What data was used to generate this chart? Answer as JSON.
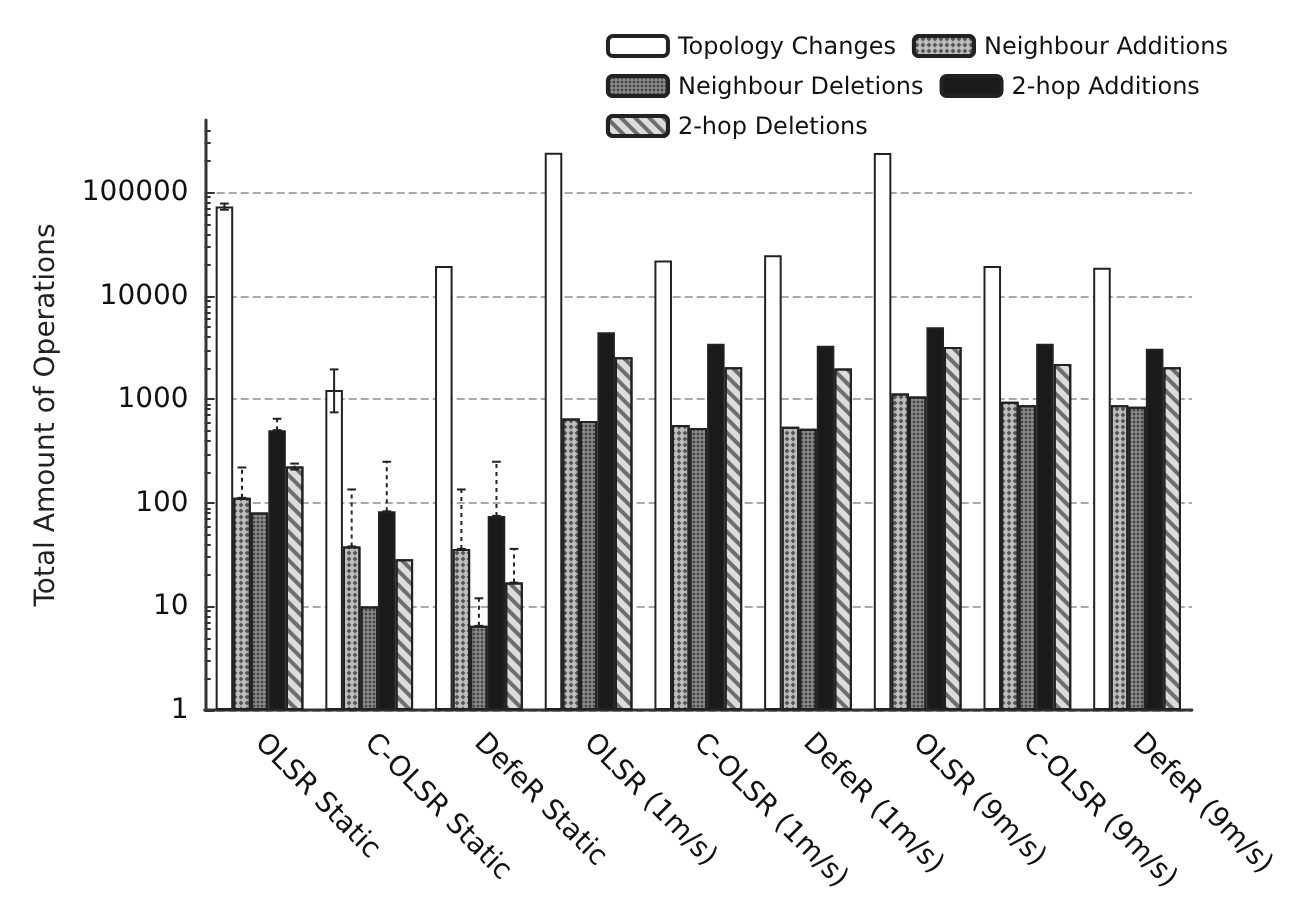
{
  "chart_data": {
    "type": "bar",
    "ylabel": "Total Amount of Operations",
    "log": true,
    "ylim": [
      1,
      500000
    ],
    "yticks": [
      1,
      10,
      100,
      1000,
      10000,
      100000
    ],
    "grid": "y",
    "legend": "top right",
    "categories": [
      "OLSR Static",
      "C-OLSR Static",
      "DefeR Static",
      "OLSR (1m/s)",
      "C-OLSR (1m/s)",
      "DefeR (1m/s)",
      "OLSR (9m/s)",
      "C-OLSR (9m/s)",
      "DefeR (9m/s)"
    ],
    "series": [
      {
        "name": "Topology Changes",
        "color": "#ffffff",
        "values": [
          73000,
          1230,
          19400,
          241000,
          22000,
          24700,
          240000,
          19400,
          18700
        ],
        "errors": [
          [
            68000,
            78000
          ],
          [
            750,
            1950
          ],
          null,
          null,
          null,
          null,
          null,
          null,
          null
        ]
      },
      {
        "name": "Neighbour Additions",
        "color": "#bdbdbd",
        "values": [
          112,
          38,
          36,
          655,
          565,
          545,
          1140,
          950,
          880
        ],
        "errors": [
          [
            112,
            220
          ],
          [
            38,
            135
          ],
          [
            36,
            135
          ],
          null,
          null,
          null,
          null,
          null,
          null
        ]
      },
      {
        "name": "Neighbour Deletions",
        "color": "#8c8c8c",
        "values": [
          81,
          10,
          6.5,
          620,
          530,
          520,
          1070,
          880,
          850
        ],
        "errors": [
          null,
          null,
          [
            6.5,
            12
          ],
          null,
          null,
          null,
          null,
          null,
          null
        ]
      },
      {
        "name": "2-hop Additions",
        "color": "#1a1a1a",
        "values": [
          505,
          83,
          75,
          4450,
          3450,
          3300,
          4970,
          3450,
          3080
        ],
        "errors": [
          [
            505,
            650
          ],
          [
            83,
            250
          ],
          [
            75,
            250
          ],
          null,
          null,
          null,
          null,
          null,
          null
        ]
      },
      {
        "name": "2-hop Deletions",
        "color": "#dcdcdc",
        "values": [
          225,
          28.6,
          17,
          2560,
          2040,
          1990,
          3200,
          2200,
          2040
        ],
        "errors": [
          [
            210,
            240
          ],
          null,
          [
            17,
            36
          ],
          null,
          null,
          null,
          null,
          null,
          null
        ]
      }
    ]
  }
}
